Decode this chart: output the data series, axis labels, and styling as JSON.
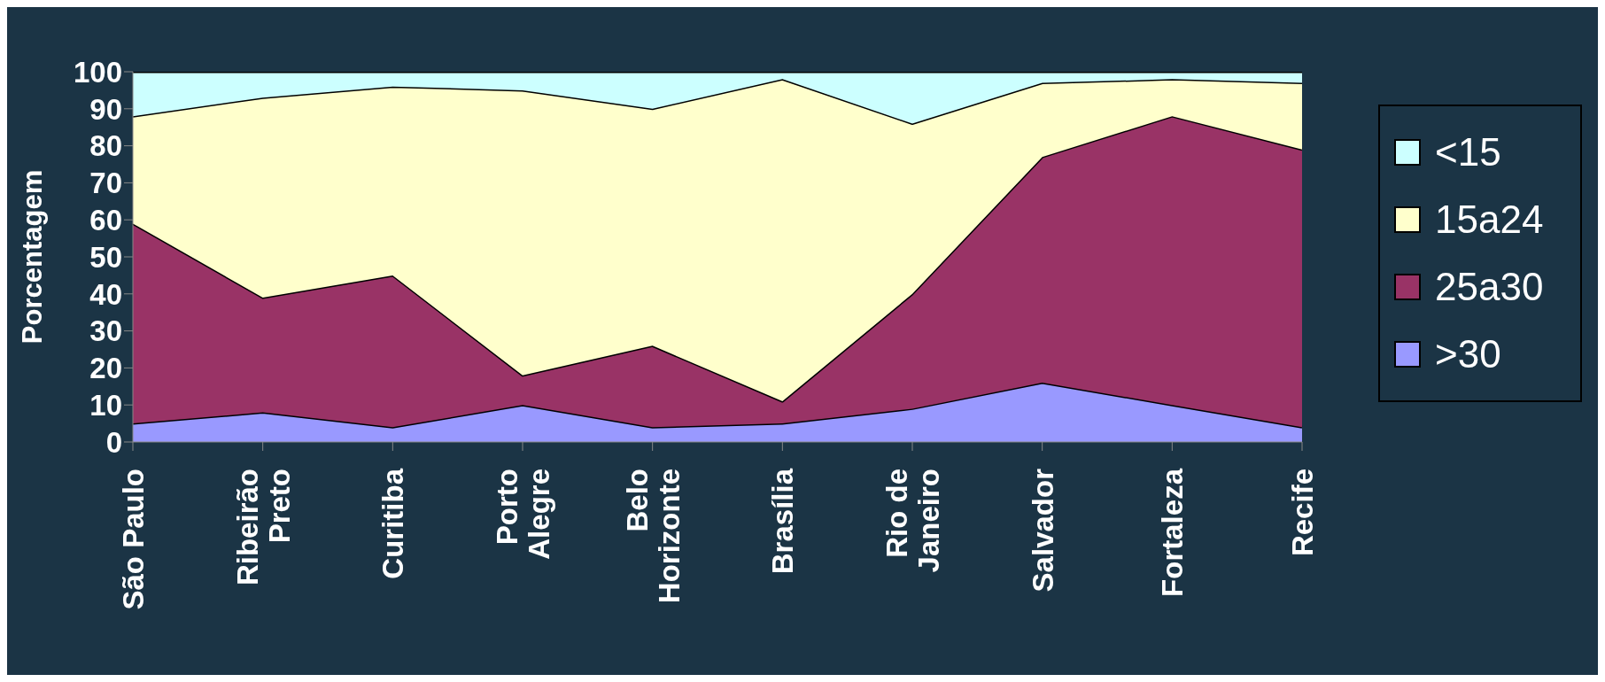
{
  "chart_data": {
    "type": "area",
    "stacked": true,
    "ylabel": "Porcentagem",
    "categories": [
      "São Paulo",
      "Ribeirão Preto",
      "Curitiba",
      "Porto Alegre",
      "Belo Horizonte",
      "Brasília",
      "Rio de Janeiro",
      "Salvador",
      "Fortaleza",
      "Recife"
    ],
    "series": [
      {
        "name": ">30",
        "color": "#9999ff",
        "values": [
          5,
          8,
          4,
          10,
          4,
          5,
          9,
          16,
          10,
          4
        ]
      },
      {
        "name": "25a30",
        "color": "#993366",
        "values": [
          54,
          31,
          41,
          8,
          22,
          6,
          31,
          61,
          78,
          75
        ]
      },
      {
        "name": "15a24",
        "color": "#ffffcc",
        "values": [
          29,
          54,
          51,
          77,
          64,
          87,
          46,
          20,
          10,
          18
        ]
      },
      {
        "name": "<15",
        "color": "#ccffff",
        "values": [
          12,
          7,
          4,
          5,
          10,
          2,
          14,
          3,
          2,
          3
        ]
      }
    ],
    "ylim": [
      0,
      100
    ],
    "yticks": [
      0,
      10,
      20,
      30,
      40,
      50,
      60,
      70,
      80,
      90,
      100
    ],
    "grid": false,
    "legend": "right"
  }
}
